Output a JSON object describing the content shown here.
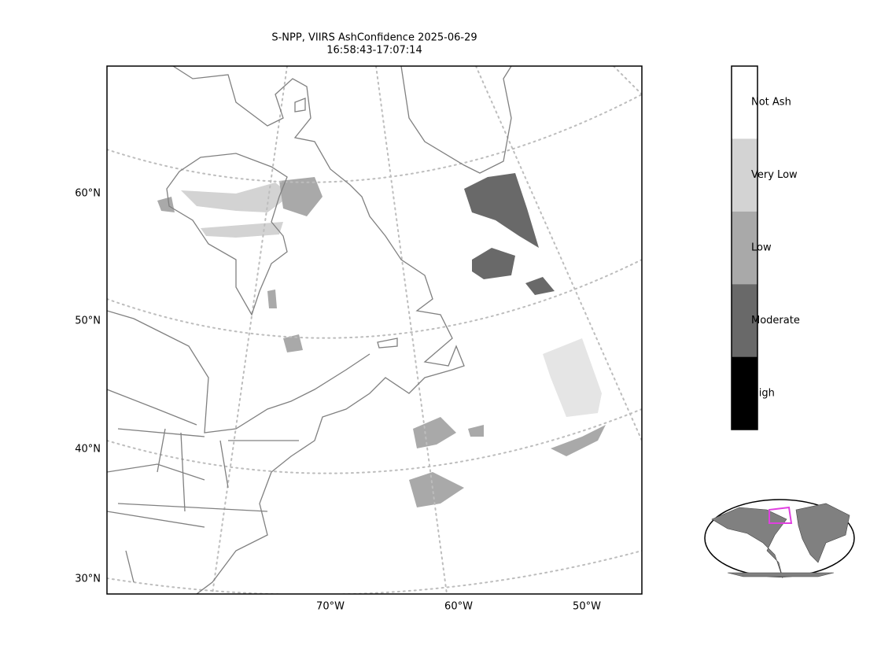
{
  "title": [
    "S-NPP, VIIRS AshConfidence 2025-06-29",
    "16:58:43-17:07:14"
  ],
  "lat_labels": [
    "60°N",
    "50°N",
    "40°N",
    "30°N"
  ],
  "lon_labels": [
    "70°W",
    "60°W",
    "50°W"
  ],
  "legend": [
    {
      "label": "Not Ash",
      "color": "#ffffff"
    },
    {
      "label": "Very Low",
      "color": "#d3d3d3"
    },
    {
      "label": "Low",
      "color": "#a9a9a9"
    },
    {
      "label": "Moderate",
      "color": "#696969"
    },
    {
      "label": "High",
      "color": "#000000"
    }
  ]
}
